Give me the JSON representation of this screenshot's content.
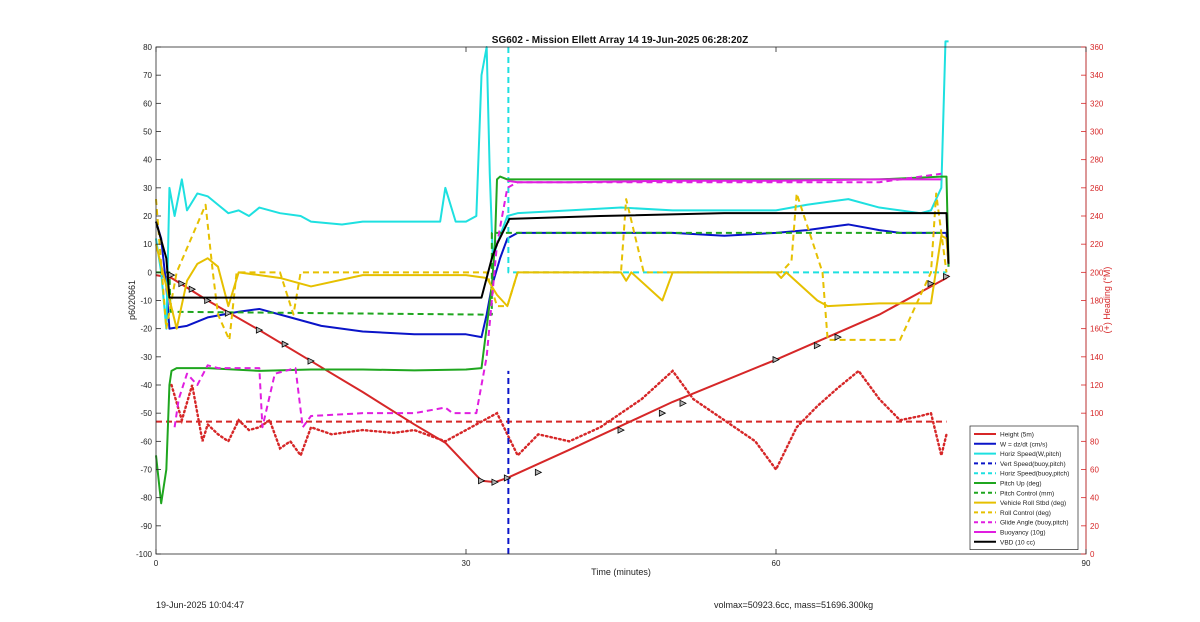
{
  "chart_data": {
    "type": "line",
    "title": "SG602 - Mission Ellett Array 14 19-Jun-2025 06:28:20Z",
    "xlabel": "Time (minutes)",
    "ylabel": "p6020661",
    "ylabel_right": "(+) Heading (°M)",
    "xlim": [
      0,
      90
    ],
    "ylim": [
      -100,
      80
    ],
    "ylim_right": [
      0,
      360
    ],
    "x_ticks": [
      0,
      30,
      60,
      90
    ],
    "y_ticks": [
      -100,
      -90,
      -80,
      -70,
      -60,
      -50,
      -40,
      -30,
      -20,
      -10,
      0,
      10,
      20,
      30,
      40,
      50,
      60,
      70,
      80
    ],
    "y_ticks_right": [
      0,
      20,
      40,
      60,
      80,
      100,
      120,
      140,
      160,
      180,
      200,
      220,
      240,
      260,
      280,
      300,
      320,
      340,
      360
    ],
    "grid": false,
    "legend_position": "bottom-right",
    "colors": {
      "axis_right": "#d62728"
    },
    "series": [
      {
        "name": "Height (5m)",
        "color": "#d62728",
        "style": "solid",
        "x": [
          0,
          1.5,
          5,
          10,
          15,
          20,
          25,
          28,
          31.5,
          32.8,
          34,
          40,
          50,
          60,
          70,
          76.5,
          76.7
        ],
        "y": [
          -1,
          -2,
          -10,
          -20.5,
          -31.5,
          -42.5,
          -54,
          -60.5,
          -74,
          -74.5,
          -73,
          -63,
          -46,
          -31,
          -15,
          -2,
          -1
        ]
      },
      {
        "name": "W = dz/dt (cm/s)",
        "color": "#0a14c8",
        "style": "solid",
        "x": [
          0,
          0.5,
          1,
          1.3,
          3,
          5,
          8,
          10,
          13,
          16,
          20,
          25,
          30,
          31.5,
          32,
          32.5,
          33.3,
          34,
          35,
          40,
          45,
          50,
          55,
          60,
          63,
          65,
          67,
          70,
          72,
          75,
          76.5,
          76.7
        ],
        "y": [
          18,
          12,
          -5,
          -20,
          -19,
          -16,
          -14,
          -13,
          -16,
          -19,
          -21,
          -22,
          -22,
          -23,
          -15,
          -5,
          5,
          12,
          14,
          14,
          14,
          14,
          13,
          14,
          15,
          16,
          17,
          15,
          14,
          14,
          14,
          2
        ]
      },
      {
        "name": "Horiz Speed(W,pitch)",
        "color": "#1ee0e0",
        "style": "solid",
        "x": [
          0,
          0.5,
          1,
          1.3,
          1.8,
          2.5,
          3,
          4,
          5,
          6,
          7,
          8,
          9,
          10,
          12,
          14,
          15,
          18,
          20,
          25,
          27.5,
          28,
          29,
          30,
          31,
          31.5,
          32,
          32.3,
          32.6,
          33,
          34,
          35,
          40,
          45,
          50,
          55,
          60,
          63,
          65,
          67,
          70,
          72,
          74,
          75,
          76,
          76.4,
          76.7
        ],
        "y": [
          12,
          0,
          -20,
          30,
          20,
          33,
          22,
          28,
          27,
          24,
          21,
          22,
          20,
          23,
          21,
          20,
          18,
          17,
          18,
          18,
          18,
          30,
          18,
          18,
          20,
          70,
          80,
          35,
          5,
          10,
          20,
          21,
          22,
          23,
          22,
          22,
          22,
          24,
          25,
          26,
          23,
          22,
          21,
          22,
          30,
          82,
          82
        ]
      },
      {
        "name": "Vert Speed(buoy,pitch)",
        "color": "#0a14c8",
        "style": "dashed",
        "x": [
          34.1,
          34.1
        ],
        "y": [
          -100,
          -35
        ]
      },
      {
        "name": "Horiz Speed(buoy,pitch)",
        "color": "#1ee0e0",
        "style": "dashed",
        "x": [
          34.1,
          34.1,
          34.5,
          76.5
        ],
        "y": [
          80,
          0,
          0,
          0
        ]
      },
      {
        "name": "Pitch Up (deg)",
        "color": "#1fa61f",
        "style": "solid",
        "x": [
          0,
          0.5,
          1,
          1.3,
          1.5,
          2,
          5,
          10,
          15,
          20,
          25,
          30,
          31.5,
          32.5,
          32.8,
          33,
          33.3,
          34,
          40,
          50,
          60,
          70,
          76,
          76.5,
          76.7
        ],
        "y": [
          -65,
          -82,
          -70,
          -40,
          -35,
          -34,
          -34,
          -35,
          -34.5,
          -34.5,
          -34.8,
          -34.5,
          -34,
          -5,
          10,
          33,
          34,
          33,
          33,
          33,
          33,
          33,
          34,
          34,
          2
        ]
      },
      {
        "name": "Pitch Control (mm)",
        "color": "#1fa61f",
        "style": "dashed",
        "x": [
          0,
          1.3,
          1.4,
          31.5,
          32.5,
          32.5,
          76.5
        ],
        "y": [
          0,
          0,
          -14,
          -15,
          -15,
          14,
          14
        ]
      },
      {
        "name": "Vehicle Roll Stbd (deg)",
        "color": "#e6c000",
        "style": "solid",
        "x": [
          0,
          1,
          2,
          3,
          4,
          5,
          6,
          7,
          8,
          10,
          12,
          15,
          20,
          25,
          30,
          32,
          33,
          34,
          35,
          40,
          45,
          45.5,
          46,
          49,
          50,
          55,
          60,
          60.5,
          61,
          64,
          65,
          70,
          75,
          76,
          76.5,
          76.7
        ],
        "y": [
          10,
          -5,
          -20,
          -3,
          3,
          5,
          2,
          -12,
          0,
          -1,
          -2,
          -5,
          -1,
          -1,
          -1,
          -2,
          -8,
          -12,
          0,
          0,
          0,
          -3,
          0,
          -10,
          0,
          0,
          0,
          -2,
          0,
          -10,
          -12,
          -11,
          -11,
          13,
          12,
          3
        ]
      },
      {
        "name": "Roll Control (deg)",
        "color": "#e6c000",
        "style": "dashed",
        "x": [
          0,
          1,
          2,
          4.8,
          5.5,
          6,
          7.1,
          7.8,
          8.5,
          12,
          13.3,
          14,
          15,
          25,
          30,
          32,
          33,
          34,
          35,
          40,
          45,
          45.5,
          47.2,
          48,
          50,
          55,
          60,
          60.5,
          61.5,
          62,
          64.5,
          65,
          72,
          75,
          75.5,
          76.5
        ],
        "y": [
          26,
          -20,
          0,
          24,
          0,
          -15,
          -24,
          0,
          0,
          0,
          -15,
          0,
          0,
          0,
          0,
          0,
          -12,
          -12,
          0,
          0,
          0,
          26,
          0,
          0,
          0,
          0,
          0,
          0,
          4,
          28,
          0,
          -24,
          -24,
          0,
          28,
          0
        ]
      },
      {
        "name": "Glide Angle (buoy,pitch)",
        "color": "#e01ee0",
        "style": "dashed",
        "x": [
          1.8,
          2.2,
          3,
          4,
          5,
          6,
          10,
          10.3,
          11.5,
          13.5,
          14.2,
          15,
          20,
          25,
          28,
          28.7,
          30,
          31,
          32,
          33,
          34,
          35,
          40,
          50,
          60,
          70,
          76
        ],
        "y": [
          -55,
          -45,
          -36,
          -40,
          -33,
          -34,
          -34,
          -55,
          -36,
          -34,
          -55,
          -51,
          -50,
          -50,
          -48,
          -50,
          -50,
          -50,
          -30,
          10,
          30,
          32,
          32,
          32,
          32,
          32,
          35
        ]
      },
      {
        "name": "Buoyancy (10g)",
        "color": "#e01ee0",
        "style": "solid",
        "x": [
          34,
          35,
          40,
          50,
          60,
          70,
          76
        ],
        "y": [
          32.5,
          32,
          32,
          32.5,
          32.5,
          33,
          33
        ]
      },
      {
        "name": "VBD (10 cc)",
        "color": "#000000",
        "style": "solid",
        "x": [
          0,
          1,
          1.3,
          31.5,
          32.5,
          33,
          34.2,
          43,
          55,
          76.5,
          76.7
        ],
        "y": [
          18,
          5,
          -9,
          -9,
          5,
          10,
          19,
          20,
          21,
          21,
          3
        ]
      }
    ],
    "heading_series": {
      "name": "(+) Heading (°M)",
      "color": "#d62728",
      "style": "dotted",
      "axis": "right",
      "x": [
        1.5,
        2.5,
        3.5,
        4.5,
        5,
        6,
        7,
        8,
        9,
        10,
        11,
        12,
        13,
        14,
        15,
        17,
        20,
        23,
        25,
        28,
        31,
        33,
        35,
        37,
        40,
        43,
        47,
        50,
        52,
        54,
        56,
        58,
        60,
        61,
        62,
        64,
        66,
        68,
        70,
        72,
        74,
        75,
        76,
        76.5
      ],
      "y": [
        120,
        95,
        120,
        80,
        92,
        85,
        80,
        95,
        88,
        90,
        95,
        75,
        80,
        70,
        90,
        85,
        88,
        86,
        88,
        80,
        92,
        100,
        70,
        85,
        80,
        90,
        110,
        130,
        110,
        100,
        90,
        80,
        60,
        75,
        90,
        105,
        118,
        130,
        110,
        95,
        98,
        100,
        70,
        85
      ]
    },
    "heading_reference": {
      "color": "#d62728",
      "style": "dashed",
      "x": [
        0,
        76.5
      ],
      "y": [
        94,
        94
      ]
    },
    "marker_series": {
      "x": [
        1.5,
        2.5,
        3.5,
        5,
        7,
        10,
        12.5,
        15,
        31.5,
        32.8,
        34,
        37,
        45,
        49,
        51,
        60,
        64,
        66,
        75,
        76.5
      ],
      "y": [
        -1,
        -4,
        -6,
        -10,
        -14.5,
        -20.5,
        -25.5,
        -31.5,
        -74,
        -74.5,
        -73,
        -71,
        -56,
        -50,
        -46.5,
        -31,
        -26,
        -23,
        -4,
        -1.5
      ]
    },
    "footer_left": "19-Jun-2025 10:04:47",
    "footer_right": "volmax=50923.6cc, mass=51696.300kg"
  }
}
